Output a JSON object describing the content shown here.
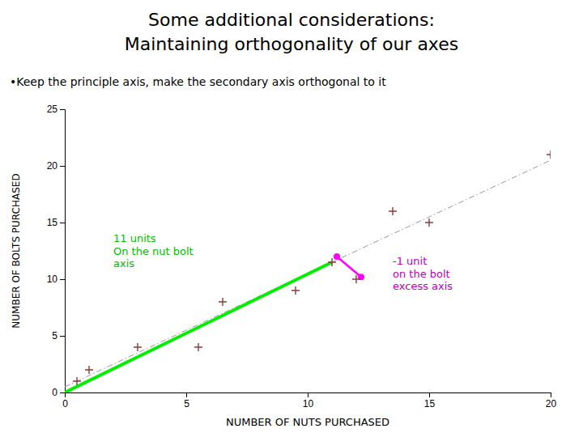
{
  "chart_data": {
    "type": "scatter",
    "title": [
      "Some additional considerations:",
      "Maintaining orthogonality of our axes"
    ],
    "subtitle": "•Keep the principle axis, make the secondary axis orthogonal to it",
    "xlabel": "NUMBER OF NUTS PURCHASED",
    "ylabel": "NUMBER OF BOLTS PURCHASED",
    "xlim": [
      0,
      20
    ],
    "ylim": [
      0,
      25
    ],
    "xticks": [
      0,
      5,
      10,
      15,
      20
    ],
    "yticks": [
      0,
      5,
      10,
      15,
      20,
      25
    ],
    "grid": false,
    "series": [
      {
        "type": "scatter",
        "color": "#8B3A3A",
        "marker": "+",
        "x": [
          0.5,
          1.0,
          3.0,
          5.5,
          6.5,
          9.5,
          11.0,
          12.0,
          13.5,
          15.0,
          20.0
        ],
        "values": [
          1.0,
          2.0,
          4.0,
          4.0,
          8.0,
          9.0,
          11.5,
          10.0,
          16.0,
          15.0,
          21.0
        ]
      },
      {
        "type": "line",
        "color": "#999999",
        "line_style": "dashdot",
        "x": [
          0,
          20
        ],
        "values": [
          0.5,
          20.5
        ]
      },
      {
        "type": "line",
        "color": "#00EE00",
        "line_style": "solid",
        "x": [
          0,
          11
        ],
        "values": [
          0,
          11.5
        ]
      },
      {
        "type": "line",
        "color": "#FF00FF",
        "line_style": "solid",
        "marker": "o",
        "x": [
          11.2,
          12.2
        ],
        "values": [
          12.0,
          10.2
        ]
      }
    ],
    "annotations": [
      {
        "text": "11 units\nOn the nut bolt\naxis",
        "x": 2.0,
        "y": 14.0,
        "color": "#00BB00"
      },
      {
        "text": "-1 unit\non the bolt\nexcess axis",
        "x": 13.5,
        "y": 12.0,
        "color": "#BB00BB"
      }
    ]
  }
}
